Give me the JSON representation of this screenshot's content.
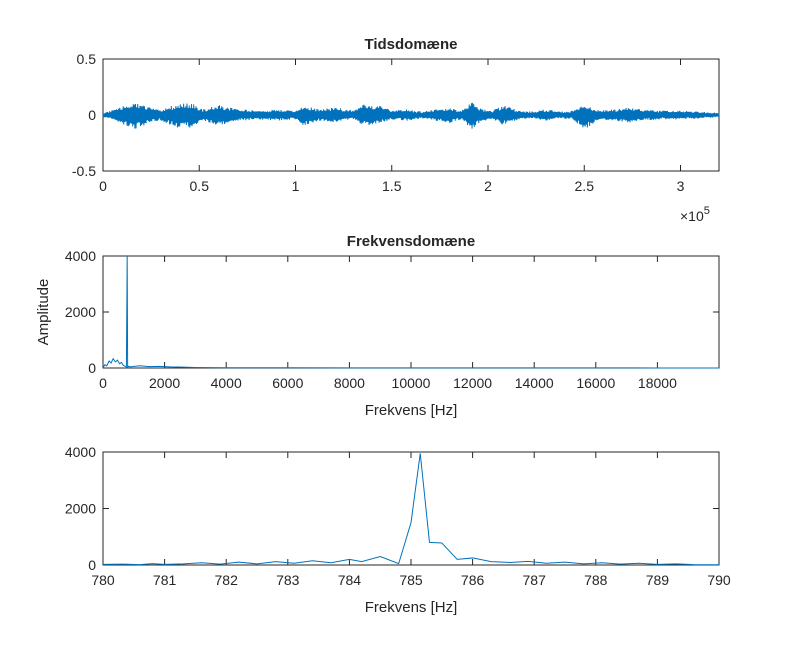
{
  "figure": {
    "background": "#ffffff",
    "line_color": "#0072bd",
    "axis_color": "#262626"
  },
  "chart_data": [
    {
      "id": "time",
      "type": "line",
      "title": "Tidsdomæne",
      "xlabel": "",
      "ylabel": "",
      "xlim": [
        0,
        320000
      ],
      "ylim": [
        -0.5,
        0.5
      ],
      "x_exponent_label": "×10",
      "x_exponent": "5",
      "x_ticks": [
        0,
        50000,
        100000,
        150000,
        200000,
        250000,
        300000
      ],
      "x_tick_labels": [
        "0",
        "0.5",
        "1",
        "1.5",
        "2",
        "2.5",
        "3"
      ],
      "y_ticks": [
        0.5,
        0,
        -0.5
      ],
      "y_tick_labels": [
        "0.5",
        "0",
        "-0.5"
      ],
      "series": [
        {
          "style": "envelope",
          "x": [
            0,
            8000,
            16000,
            24000,
            30000,
            38000,
            46000,
            52000,
            60000,
            66000,
            72000,
            80000,
            90000,
            100000,
            104000,
            112000,
            120000,
            130000,
            136000,
            144000,
            150000,
            158000,
            166000,
            172000,
            180000,
            186000,
            192000,
            196000,
            202000,
            208000,
            216000,
            222000,
            230000,
            238000,
            244000,
            250000,
            258000,
            266000,
            272000,
            280000,
            290000,
            300000,
            310000,
            320000
          ],
          "upper": [
            0.02,
            0.06,
            0.12,
            0.07,
            0.04,
            0.1,
            0.11,
            0.05,
            0.09,
            0.07,
            0.05,
            0.04,
            0.05,
            0.04,
            0.09,
            0.05,
            0.07,
            0.04,
            0.1,
            0.08,
            0.04,
            0.05,
            0.03,
            0.05,
            0.06,
            0.04,
            0.12,
            0.06,
            0.04,
            0.09,
            0.04,
            0.03,
            0.05,
            0.03,
            0.04,
            0.09,
            0.04,
            0.05,
            0.07,
            0.05,
            0.04,
            0.04,
            0.03,
            0.02
          ],
          "lower": [
            -0.02,
            -0.06,
            -0.14,
            -0.07,
            -0.05,
            -0.11,
            -0.12,
            -0.05,
            -0.1,
            -0.07,
            -0.05,
            -0.04,
            -0.05,
            -0.04,
            -0.1,
            -0.05,
            -0.07,
            -0.04,
            -0.1,
            -0.08,
            -0.04,
            -0.05,
            -0.03,
            -0.05,
            -0.07,
            -0.04,
            -0.13,
            -0.06,
            -0.04,
            -0.09,
            -0.04,
            -0.03,
            -0.05,
            -0.03,
            -0.04,
            -0.13,
            -0.04,
            -0.05,
            -0.07,
            -0.05,
            -0.04,
            -0.04,
            -0.03,
            -0.02
          ]
        }
      ]
    },
    {
      "id": "freq",
      "type": "line",
      "title": "Frekvensdomæne",
      "xlabel": "Frekvens [Hz]",
      "ylabel": "Amplitude",
      "xlim": [
        0,
        20000
      ],
      "ylim": [
        0,
        4000
      ],
      "x_ticks": [
        0,
        2000,
        4000,
        6000,
        8000,
        10000,
        12000,
        14000,
        16000,
        18000
      ],
      "x_tick_labels": [
        "0",
        "2000",
        "4000",
        "6000",
        "8000",
        "10000",
        "12000",
        "14000",
        "16000",
        "18000"
      ],
      "y_ticks": [
        0,
        2000,
        4000
      ],
      "y_tick_labels": [
        "0",
        "2000",
        "4000"
      ],
      "series": [
        {
          "x": [
            0,
            60,
            120,
            200,
            260,
            330,
            400,
            470,
            540,
            600,
            660,
            720,
            760,
            785,
            800,
            840,
            900,
            1000,
            1200,
            1500,
            1800,
            2200,
            2600,
            3000,
            4000,
            6000,
            8000,
            10000,
            12000,
            14000,
            16000,
            18000,
            20000
          ],
          "y": [
            0,
            120,
            80,
            250,
            180,
            330,
            220,
            280,
            150,
            200,
            90,
            60,
            40,
            4000,
            30,
            60,
            40,
            60,
            80,
            50,
            60,
            40,
            30,
            20,
            10,
            8,
            6,
            5,
            4,
            3,
            3,
            2,
            2
          ]
        }
      ]
    },
    {
      "id": "zoom",
      "type": "line",
      "title": "",
      "xlabel": "Frekvens [Hz]",
      "ylabel": "",
      "xlim": [
        780,
        790
      ],
      "ylim": [
        0,
        4000
      ],
      "x_ticks": [
        780,
        781,
        782,
        783,
        784,
        785,
        786,
        787,
        788,
        789,
        790
      ],
      "x_tick_labels": [
        "780",
        "781",
        "782",
        "783",
        "784",
        "785",
        "786",
        "787",
        "788",
        "789",
        "790"
      ],
      "y_ticks": [
        0,
        2000,
        4000
      ],
      "y_tick_labels": [
        "0",
        "2000",
        "4000"
      ],
      "series": [
        {
          "x": [
            780,
            780.3,
            780.6,
            780.8,
            781.0,
            781.3,
            781.6,
            781.9,
            782.2,
            782.5,
            782.8,
            783.1,
            783.4,
            783.7,
            784.0,
            784.2,
            784.5,
            784.8,
            785.0,
            785.15,
            785.3,
            785.5,
            785.75,
            786.0,
            786.3,
            786.6,
            786.9,
            787.2,
            787.5,
            787.8,
            788.1,
            788.4,
            788.7,
            789.0,
            789.3,
            789.6,
            790.0
          ],
          "y": [
            20,
            30,
            15,
            50,
            20,
            40,
            80,
            30,
            100,
            40,
            120,
            60,
            150,
            80,
            200,
            120,
            300,
            50,
            1500,
            3950,
            800,
            780,
            200,
            250,
            120,
            90,
            130,
            60,
            100,
            40,
            80,
            30,
            60,
            20,
            40,
            15,
            10
          ]
        }
      ]
    }
  ]
}
